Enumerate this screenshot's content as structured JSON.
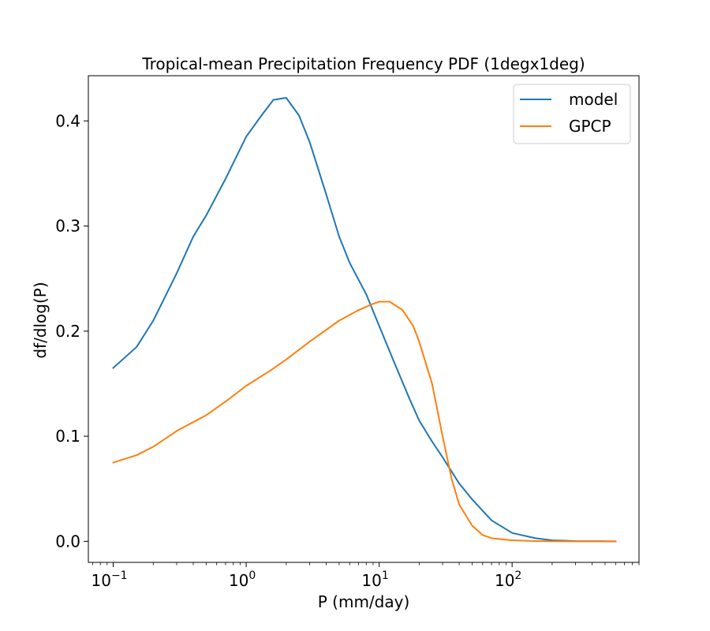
{
  "chart_data": {
    "type": "line",
    "title": "Tropical-mean Precipitation Frequency PDF (1degx1deg)",
    "xlabel": "P (mm/day)",
    "ylabel": "df/dlog(P)",
    "xscale": "log",
    "xlim": [
      0.065,
      900
    ],
    "ylim": [
      -0.02,
      0.443
    ],
    "xticks": [
      {
        "value": 0.1,
        "base": "10",
        "exp": "−1"
      },
      {
        "value": 1,
        "base": "10",
        "exp": "0"
      },
      {
        "value": 10,
        "base": "10",
        "exp": "1"
      },
      {
        "value": 100,
        "base": "10",
        "exp": "2"
      }
    ],
    "yticks": [
      {
        "value": 0.0,
        "label": "0.0"
      },
      {
        "value": 0.1,
        "label": "0.1"
      },
      {
        "value": 0.2,
        "label": "0.2"
      },
      {
        "value": 0.3,
        "label": "0.3"
      },
      {
        "value": 0.4,
        "label": "0.4"
      }
    ],
    "legend_position": "top-right",
    "series": [
      {
        "name": "model",
        "color": "#1f77b4",
        "x": [
          0.1,
          0.15,
          0.2,
          0.3,
          0.4,
          0.5,
          0.7,
          1.0,
          1.3,
          1.6,
          2.0,
          2.5,
          3.0,
          4.0,
          5.0,
          6.0,
          8.0,
          10.0,
          13.0,
          17.0,
          20.0,
          25.0,
          30.0,
          40.0,
          50.0,
          70.0,
          100.0,
          150.0,
          200.0,
          300.0,
          500.0,
          600.0
        ],
        "y": [
          0.165,
          0.185,
          0.21,
          0.255,
          0.29,
          0.31,
          0.345,
          0.385,
          0.405,
          0.42,
          0.422,
          0.405,
          0.38,
          0.33,
          0.29,
          0.265,
          0.235,
          0.205,
          0.17,
          0.135,
          0.115,
          0.095,
          0.08,
          0.055,
          0.04,
          0.02,
          0.008,
          0.003,
          0.001,
          0.0003,
          0.0001,
          0.0
        ],
        "label": "model"
      },
      {
        "name": "GPCP",
        "color": "#ff7f0e",
        "x": [
          0.1,
          0.15,
          0.2,
          0.3,
          0.5,
          0.7,
          1.0,
          1.5,
          2.0,
          3.0,
          5.0,
          7.0,
          9.0,
          10.0,
          12.0,
          15.0,
          18.0,
          20.0,
          25.0,
          30.0,
          35.0,
          40.0,
          50.0,
          60.0,
          70.0,
          100.0,
          150.0,
          200.0,
          300.0,
          600.0
        ],
        "y": [
          0.075,
          0.082,
          0.09,
          0.105,
          0.12,
          0.133,
          0.148,
          0.162,
          0.173,
          0.19,
          0.21,
          0.22,
          0.226,
          0.228,
          0.228,
          0.22,
          0.205,
          0.19,
          0.15,
          0.1,
          0.06,
          0.035,
          0.015,
          0.006,
          0.003,
          0.001,
          0.0003,
          0.0001,
          0.0,
          0.0
        ],
        "label": "GPCP"
      }
    ]
  }
}
